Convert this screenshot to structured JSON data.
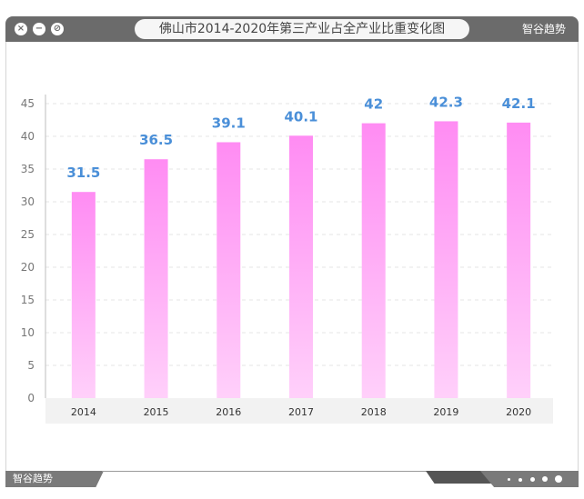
{
  "window": {
    "title": "佛山市2014-2020年第三产业占全产业比重变化图",
    "brand": "智谷趋势"
  },
  "footer": {
    "brand": "智谷趋势"
  },
  "colors": {
    "bar_top": "#ff8cf3",
    "bar_bottom": "#ffd0fa",
    "label": "#4a8fd8",
    "titlebar": "#6b6b6b",
    "grid": "#e6e6e6",
    "axis_band": "#f2f2f2"
  },
  "chart_data": {
    "type": "bar",
    "title": "佛山市2014-2020年第三产业占全产业比重变化图",
    "xlabel": "",
    "ylabel": "",
    "categories": [
      "2014",
      "2015",
      "2016",
      "2017",
      "2018",
      "2019",
      "2020"
    ],
    "values": [
      31.5,
      36.5,
      39.1,
      40.1,
      42,
      42.3,
      42.1
    ],
    "data_labels": [
      "31.5",
      "36.5",
      "39.1",
      "40.1",
      "42",
      "42.3",
      "42.1"
    ],
    "ylim": [
      0,
      45
    ],
    "yticks": [
      "0",
      "5",
      "10",
      "15",
      "20",
      "25",
      "30",
      "35",
      "40",
      "45"
    ],
    "grid": true,
    "legend": "none"
  }
}
